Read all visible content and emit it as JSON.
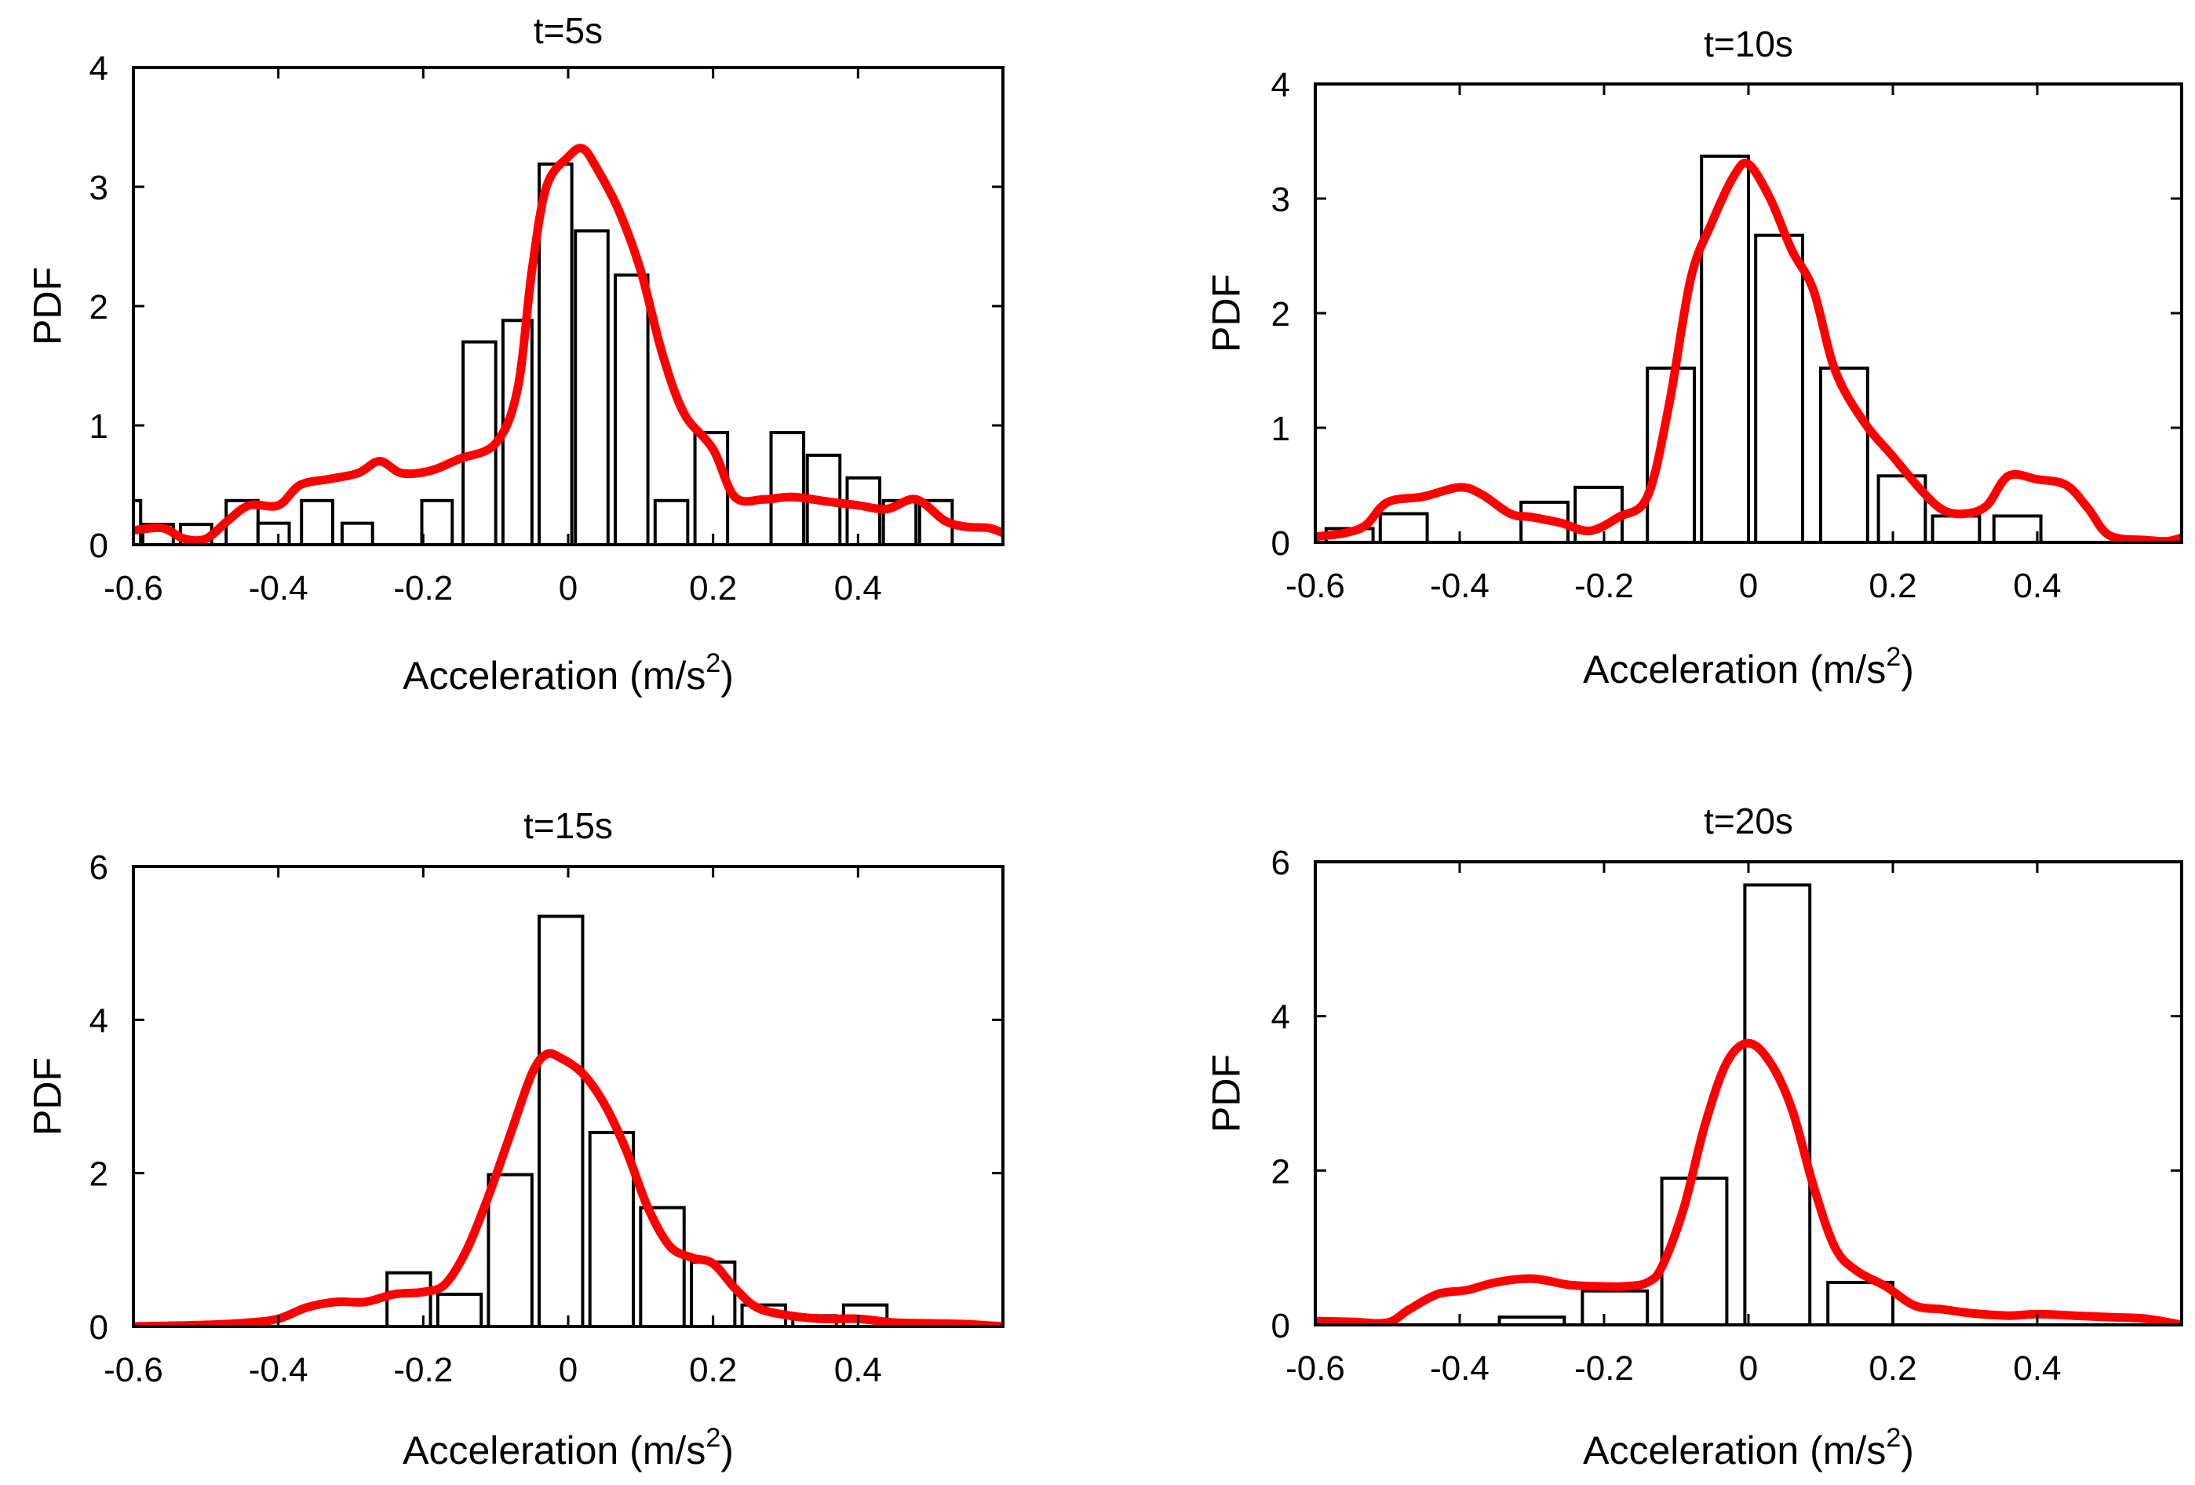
{
  "chart_data": [
    {
      "type": "bar",
      "title": "t=5s",
      "xlabel": "Acceleration (m/s",
      "xlabel_sup": "2",
      "xlabel_close": ")",
      "ylabel": "PDF",
      "xlim": [
        -0.6,
        0.6
      ],
      "ylim": [
        0,
        4
      ],
      "xticks": [
        -0.6,
        -0.4,
        -0.2,
        0,
        0.2,
        0.4
      ],
      "xtick_labels": [
        "-0.6",
        "-0.4",
        "-0.2",
        "0",
        "0.2",
        "0.4"
      ],
      "yticks": [
        0,
        1,
        2,
        3,
        4
      ],
      "ytick_labels": [
        "0",
        "1",
        "2",
        "3",
        "4"
      ],
      "bins": [
        {
          "x0": -0.607,
          "x1": -0.59,
          "value": 0.37
        },
        {
          "x0": -0.587,
          "x1": -0.545,
          "value": 0.17
        },
        {
          "x0": -0.535,
          "x1": -0.492,
          "value": 0.17
        },
        {
          "x0": -0.472,
          "x1": -0.428,
          "value": 0.37
        },
        {
          "x0": -0.428,
          "x1": -0.385,
          "value": 0.18
        },
        {
          "x0": -0.368,
          "x1": -0.325,
          "value": 0.37
        },
        {
          "x0": -0.312,
          "x1": -0.27,
          "value": 0.18
        },
        {
          "x0": -0.202,
          "x1": -0.16,
          "value": 0.37
        },
        {
          "x0": -0.145,
          "x1": -0.1,
          "value": 1.7
        },
        {
          "x0": -0.09,
          "x1": -0.05,
          "value": 1.88
        },
        {
          "x0": -0.04,
          "x1": 0.005,
          "value": 3.19
        },
        {
          "x0": 0.01,
          "x1": 0.055,
          "value": 2.63
        },
        {
          "x0": 0.065,
          "x1": 0.11,
          "value": 2.26
        },
        {
          "x0": 0.12,
          "x1": 0.165,
          "value": 0.37
        },
        {
          "x0": 0.175,
          "x1": 0.22,
          "value": 0.94
        },
        {
          "x0": 0.28,
          "x1": 0.325,
          "value": 0.94
        },
        {
          "x0": 0.33,
          "x1": 0.375,
          "value": 0.75
        },
        {
          "x0": 0.385,
          "x1": 0.43,
          "value": 0.56
        },
        {
          "x0": 0.435,
          "x1": 0.48,
          "value": 0.37
        },
        {
          "x0": 0.485,
          "x1": 0.53,
          "value": 0.37
        }
      ],
      "kde": {
        "x": [
          -0.6,
          -0.56,
          -0.53,
          -0.5,
          -0.47,
          -0.44,
          -0.4,
          -0.37,
          -0.33,
          -0.29,
          -0.26,
          -0.23,
          -0.19,
          -0.15,
          -0.1,
          -0.07,
          -0.05,
          -0.03,
          0.0,
          0.02,
          0.04,
          0.07,
          0.1,
          0.13,
          0.16,
          0.2,
          0.23,
          0.27,
          0.31,
          0.36,
          0.4,
          0.44,
          0.48,
          0.52,
          0.55,
          0.58,
          0.6
        ],
        "y": [
          0.12,
          0.14,
          0.05,
          0.05,
          0.2,
          0.33,
          0.33,
          0.5,
          0.55,
          0.6,
          0.7,
          0.6,
          0.62,
          0.72,
          0.85,
          1.3,
          2.3,
          3.0,
          3.25,
          3.32,
          3.15,
          2.8,
          2.3,
          1.6,
          1.1,
          0.8,
          0.4,
          0.38,
          0.4,
          0.36,
          0.33,
          0.3,
          0.38,
          0.2,
          0.15,
          0.14,
          0.1
        ]
      }
    },
    {
      "type": "bar",
      "title": "t=10s",
      "xlabel": "Acceleration (m/s",
      "xlabel_sup": "2",
      "xlabel_close": ")",
      "ylabel": "PDF",
      "xlim": [
        -0.6,
        0.6
      ],
      "ylim": [
        0,
        4
      ],
      "xticks": [
        -0.6,
        -0.4,
        -0.2,
        0,
        0.2,
        0.4
      ],
      "xtick_labels": [
        "-0.6",
        "-0.4",
        "-0.2",
        "0",
        "0.2",
        "0.4"
      ],
      "yticks": [
        0,
        1,
        2,
        3,
        4
      ],
      "ytick_labels": [
        "0",
        "1",
        "2",
        "3",
        "4"
      ],
      "bins": [
        {
          "x0": -0.585,
          "x1": -0.52,
          "value": 0.12
        },
        {
          "x0": -0.51,
          "x1": -0.445,
          "value": 0.25
        },
        {
          "x0": -0.315,
          "x1": -0.25,
          "value": 0.35
        },
        {
          "x0": -0.24,
          "x1": -0.175,
          "value": 0.48
        },
        {
          "x0": -0.14,
          "x1": -0.075,
          "value": 1.52
        },
        {
          "x0": -0.065,
          "x1": 0.0,
          "value": 3.37
        },
        {
          "x0": 0.01,
          "x1": 0.075,
          "value": 2.68
        },
        {
          "x0": 0.1,
          "x1": 0.165,
          "value": 1.52
        },
        {
          "x0": 0.18,
          "x1": 0.245,
          "value": 0.58
        },
        {
          "x0": 0.255,
          "x1": 0.32,
          "value": 0.23
        },
        {
          "x0": 0.34,
          "x1": 0.405,
          "value": 0.23
        }
      ],
      "kde": {
        "x": [
          -0.6,
          -0.56,
          -0.53,
          -0.5,
          -0.45,
          -0.4,
          -0.37,
          -0.33,
          -0.3,
          -0.26,
          -0.22,
          -0.18,
          -0.14,
          -0.11,
          -0.08,
          -0.05,
          -0.02,
          0.0,
          0.03,
          0.06,
          0.09,
          0.12,
          0.16,
          0.2,
          0.24,
          0.27,
          0.3,
          0.33,
          0.36,
          0.4,
          0.44,
          0.47,
          0.5,
          0.55,
          0.58,
          0.6
        ],
        "y": [
          0.05,
          0.08,
          0.15,
          0.35,
          0.4,
          0.48,
          0.42,
          0.25,
          0.22,
          0.17,
          0.1,
          0.22,
          0.4,
          1.2,
          2.3,
          2.8,
          3.2,
          3.3,
          3.0,
          2.55,
          2.2,
          1.5,
          1.05,
          0.75,
          0.45,
          0.28,
          0.25,
          0.32,
          0.58,
          0.55,
          0.5,
          0.3,
          0.06,
          0.02,
          0.01,
          0.04
        ]
      }
    },
    {
      "type": "bar",
      "title": "t=15s",
      "xlabel": "Acceleration (m/s",
      "xlabel_sup": "2",
      "xlabel_close": ")",
      "ylabel": "PDF",
      "xlim": [
        -0.6,
        0.6
      ],
      "ylim": [
        0,
        6
      ],
      "xticks": [
        -0.6,
        -0.4,
        -0.2,
        0,
        0.2,
        0.4
      ],
      "xtick_labels": [
        "-0.6",
        "-0.4",
        "-0.2",
        "0",
        "0.2",
        "0.4"
      ],
      "yticks": [
        0,
        2,
        4,
        6
      ],
      "ytick_labels": [
        "0",
        "2",
        "4",
        "6"
      ],
      "bins": [
        {
          "x0": -0.25,
          "x1": -0.19,
          "value": 0.7
        },
        {
          "x0": -0.18,
          "x1": -0.12,
          "value": 0.42
        },
        {
          "x0": -0.11,
          "x1": -0.05,
          "value": 1.98
        },
        {
          "x0": -0.04,
          "x1": 0.02,
          "value": 5.35
        },
        {
          "x0": 0.03,
          "x1": 0.09,
          "value": 2.53
        },
        {
          "x0": 0.1,
          "x1": 0.16,
          "value": 1.55
        },
        {
          "x0": 0.17,
          "x1": 0.23,
          "value": 0.84
        },
        {
          "x0": 0.24,
          "x1": 0.3,
          "value": 0.28
        },
        {
          "x0": 0.31,
          "x1": 0.37,
          "value": 0.14
        },
        {
          "x0": 0.38,
          "x1": 0.44,
          "value": 0.28
        }
      ],
      "kde": {
        "x": [
          -0.6,
          -0.5,
          -0.44,
          -0.4,
          -0.36,
          -0.32,
          -0.28,
          -0.24,
          -0.2,
          -0.17,
          -0.14,
          -0.11,
          -0.08,
          -0.05,
          -0.03,
          -0.01,
          0.02,
          0.05,
          0.08,
          0.11,
          0.14,
          0.17,
          0.2,
          0.23,
          0.26,
          0.3,
          0.35,
          0.4,
          0.45,
          0.5,
          0.55,
          0.6
        ],
        "y": [
          0.0,
          0.02,
          0.05,
          0.1,
          0.25,
          0.32,
          0.32,
          0.42,
          0.45,
          0.55,
          1.0,
          1.7,
          2.5,
          3.3,
          3.55,
          3.5,
          3.3,
          2.9,
          2.3,
          1.55,
          1.05,
          0.9,
          0.82,
          0.5,
          0.25,
          0.15,
          0.1,
          0.1,
          0.05,
          0.04,
          0.03,
          0.0
        ]
      }
    },
    {
      "type": "bar",
      "title": "t=20s",
      "xlabel": "Acceleration (m/s",
      "xlabel_sup": "2",
      "xlabel_close": ")",
      "ylabel": "PDF",
      "xlim": [
        -0.6,
        0.6
      ],
      "ylim": [
        0,
        6
      ],
      "xticks": [
        -0.6,
        -0.4,
        -0.2,
        0,
        0.2,
        0.4
      ],
      "xtick_labels": [
        "-0.6",
        "-0.4",
        "-0.2",
        "0",
        "0.2",
        "0.4"
      ],
      "yticks": [
        0,
        2,
        4,
        6
      ],
      "ytick_labels": [
        "0",
        "2",
        "4",
        "6"
      ],
      "bins": [
        {
          "x0": -0.345,
          "x1": -0.255,
          "value": 0.1
        },
        {
          "x0": -0.23,
          "x1": -0.14,
          "value": 0.44
        },
        {
          "x0": -0.12,
          "x1": -0.03,
          "value": 1.9
        },
        {
          "x0": -0.005,
          "x1": 0.085,
          "value": 5.7
        },
        {
          "x0": 0.11,
          "x1": 0.2,
          "value": 0.55
        }
      ],
      "kde": {
        "x": [
          -0.6,
          -0.55,
          -0.5,
          -0.47,
          -0.43,
          -0.39,
          -0.35,
          -0.3,
          -0.25,
          -0.21,
          -0.17,
          -0.14,
          -0.12,
          -0.09,
          -0.06,
          -0.03,
          0.0,
          0.03,
          0.06,
          0.09,
          0.12,
          0.15,
          0.19,
          0.23,
          0.27,
          0.31,
          0.36,
          0.4,
          0.45,
          0.5,
          0.55,
          0.6
        ],
        "y": [
          0.05,
          0.04,
          0.03,
          0.2,
          0.4,
          0.45,
          0.55,
          0.6,
          0.52,
          0.5,
          0.5,
          0.55,
          0.75,
          1.5,
          2.6,
          3.4,
          3.65,
          3.4,
          2.8,
          1.8,
          1.0,
          0.7,
          0.5,
          0.25,
          0.2,
          0.15,
          0.12,
          0.14,
          0.12,
          0.1,
          0.08,
          0.0
        ]
      }
    }
  ]
}
